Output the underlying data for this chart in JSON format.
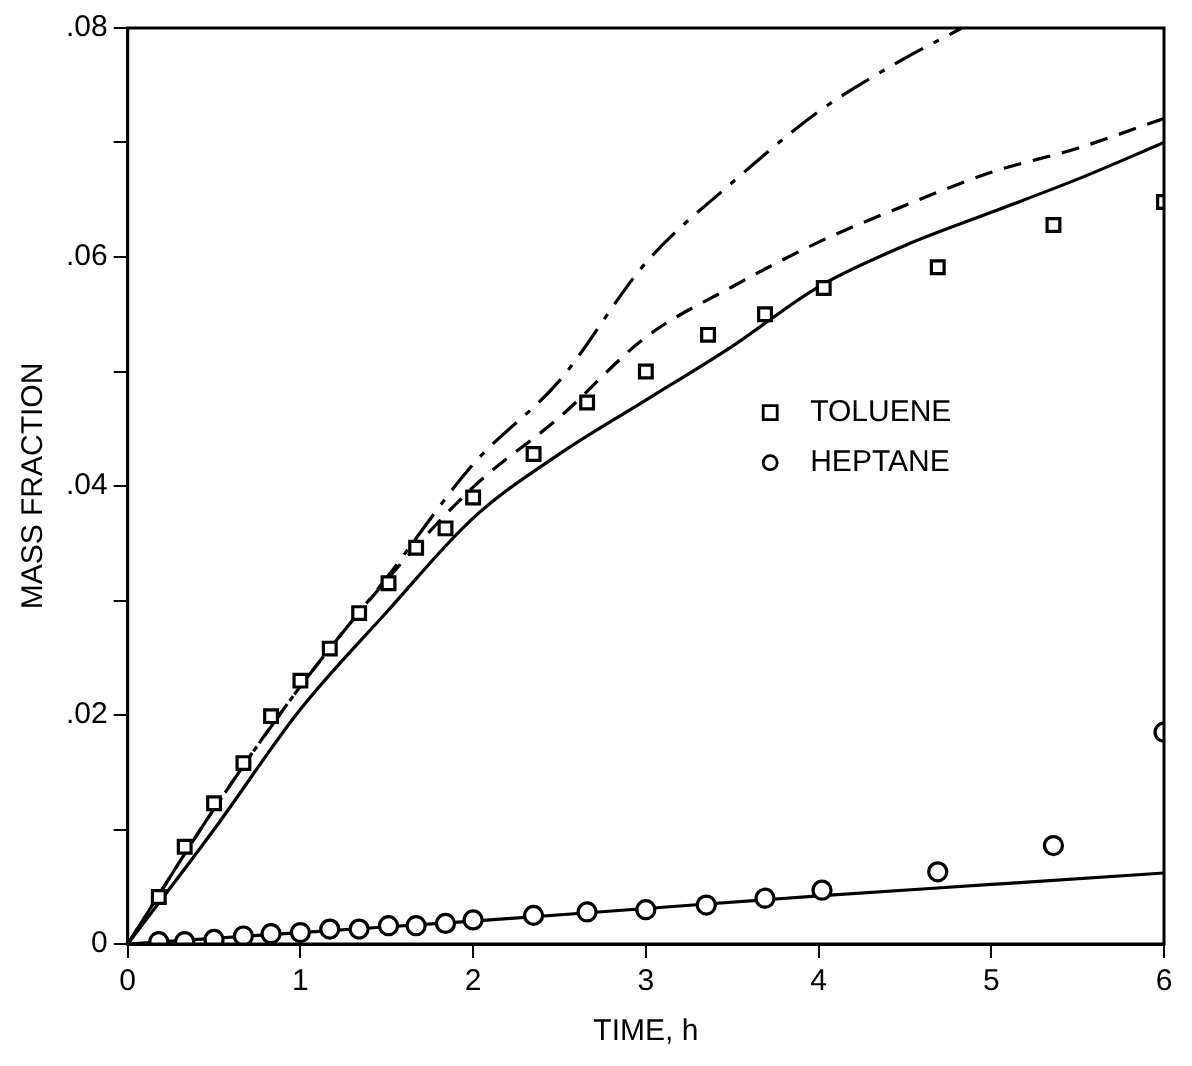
{
  "chart_data": {
    "type": "scatter",
    "xlabel": "TIME, h",
    "ylabel": "MASS FRACTION",
    "xlim": [
      0,
      6
    ],
    "ylim": [
      0,
      0.08
    ],
    "xticks": [
      0,
      1,
      2,
      3,
      4,
      5,
      6
    ],
    "yticks": [
      {
        "value": 0,
        "label": "0"
      },
      {
        "value": 0.01,
        "label": null
      },
      {
        "value": 0.02,
        "label": ".02"
      },
      {
        "value": 0.03,
        "label": null
      },
      {
        "value": 0.04,
        "label": ".04"
      },
      {
        "value": 0.05,
        "label": null
      },
      {
        "value": 0.06,
        "label": ".06"
      },
      {
        "value": 0.07,
        "label": null
      },
      {
        "value": 0.08,
        "label": ".08"
      }
    ],
    "grid": false,
    "legend": "right",
    "series": [
      {
        "name": "TOLUENE",
        "marker": "square",
        "color": "#000000",
        "x": [
          0.18,
          0.33,
          0.5,
          0.67,
          0.83,
          1.0,
          1.17,
          1.34,
          1.51,
          1.67,
          1.84,
          2.0,
          2.35,
          2.66,
          3.0,
          3.36,
          3.69,
          4.03,
          4.69,
          5.36,
          6.0
        ],
        "values": [
          0.0041,
          0.0085,
          0.0123,
          0.0158,
          0.0199,
          0.023,
          0.0258,
          0.0289,
          0.0315,
          0.0346,
          0.0363,
          0.039,
          0.0428,
          0.0473,
          0.05,
          0.0532,
          0.055,
          0.0573,
          0.0591,
          0.0628,
          0.0648
        ]
      },
      {
        "name": "HEPTANE",
        "marker": "circle",
        "color": "#000000",
        "x": [
          0.18,
          0.33,
          0.5,
          0.67,
          0.83,
          1.0,
          1.17,
          1.34,
          1.51,
          1.67,
          1.84,
          2.0,
          2.35,
          2.66,
          3.0,
          3.35,
          3.69,
          4.02,
          4.69,
          5.36,
          6.0
        ],
        "values": [
          0.0002,
          0.0002,
          0.0004,
          0.0007,
          0.0009,
          0.001,
          0.0013,
          0.0013,
          0.0016,
          0.0016,
          0.0018,
          0.0021,
          0.0025,
          0.0028,
          0.003,
          0.0034,
          0.004,
          0.0047,
          0.0063,
          0.0086,
          0.0185
        ]
      },
      {
        "type": "line",
        "marker": "none",
        "line_style": "solid",
        "color": "#000000",
        "x": [
          0,
          0.5,
          1,
          1.5,
          2,
          2.5,
          3,
          3.5,
          4,
          4.5,
          5,
          5.5,
          6
        ],
        "values": [
          0,
          0.01,
          0.0205,
          0.029,
          0.0372,
          0.0428,
          0.0475,
          0.0522,
          0.0574,
          0.061,
          0.0639,
          0.0668,
          0.07
        ]
      },
      {
        "type": "line",
        "marker": "none",
        "line_style": "dashed",
        "color": "#000000",
        "x": [
          0,
          0.5,
          1,
          1.5,
          2,
          2.5,
          3,
          3.5,
          4,
          4.5,
          5,
          5.5,
          6
        ],
        "values": [
          0,
          0.0118,
          0.0225,
          0.0318,
          0.0399,
          0.046,
          0.053,
          0.0574,
          0.0613,
          0.0645,
          0.0674,
          0.0695,
          0.0721
        ]
      },
      {
        "type": "line",
        "marker": "none",
        "line_style": "dashdot",
        "color": "#000000",
        "x": [
          0,
          0.5,
          1,
          1.5,
          2,
          2.5,
          3,
          3.5,
          4,
          4.47,
          4.83
        ],
        "values": [
          0,
          0.0118,
          0.0225,
          0.032,
          0.0419,
          0.0492,
          0.0595,
          0.0665,
          0.0727,
          0.0771,
          0.08
        ]
      },
      {
        "type": "line",
        "marker": "none",
        "line_style": "solid",
        "color": "#000000",
        "x": [
          0,
          1,
          2,
          3,
          4,
          5,
          6
        ],
        "values": [
          0,
          0.001,
          0.002,
          0.0031,
          0.0042,
          0.0052,
          0.0062
        ]
      }
    ]
  }
}
